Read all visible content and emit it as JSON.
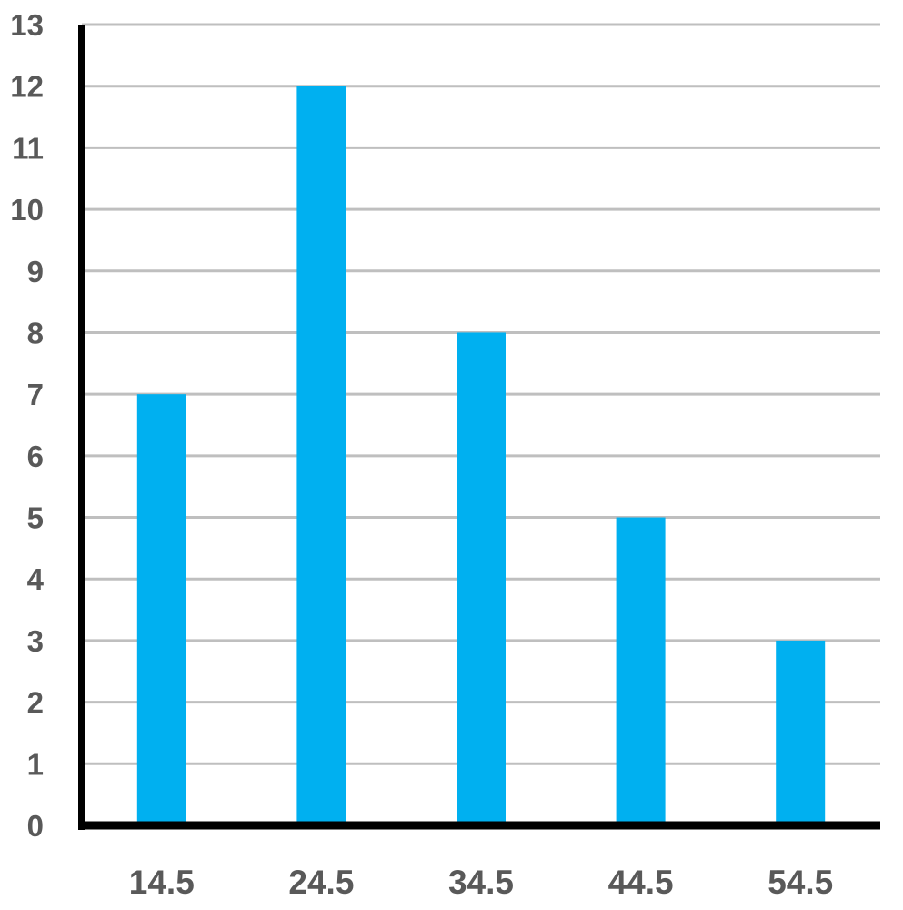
{
  "chart_data": {
    "type": "bar",
    "categories": [
      "14.5",
      "24.5",
      "34.5",
      "44.5",
      "54.5"
    ],
    "values": [
      7,
      12,
      8,
      5,
      3
    ],
    "title": "",
    "xlabel": "",
    "ylabel": "",
    "ylim": [
      0,
      13
    ],
    "yticks": [
      "0",
      "1",
      "2",
      "3",
      "4",
      "5",
      "6",
      "7",
      "8",
      "9",
      "10",
      "11",
      "12",
      "13"
    ],
    "grid": true,
    "legend": "none",
    "colors": {
      "bar": "#00B0F0",
      "grid": "#BFBFBF",
      "axis": "#000000",
      "tick_text": "#595959"
    }
  }
}
